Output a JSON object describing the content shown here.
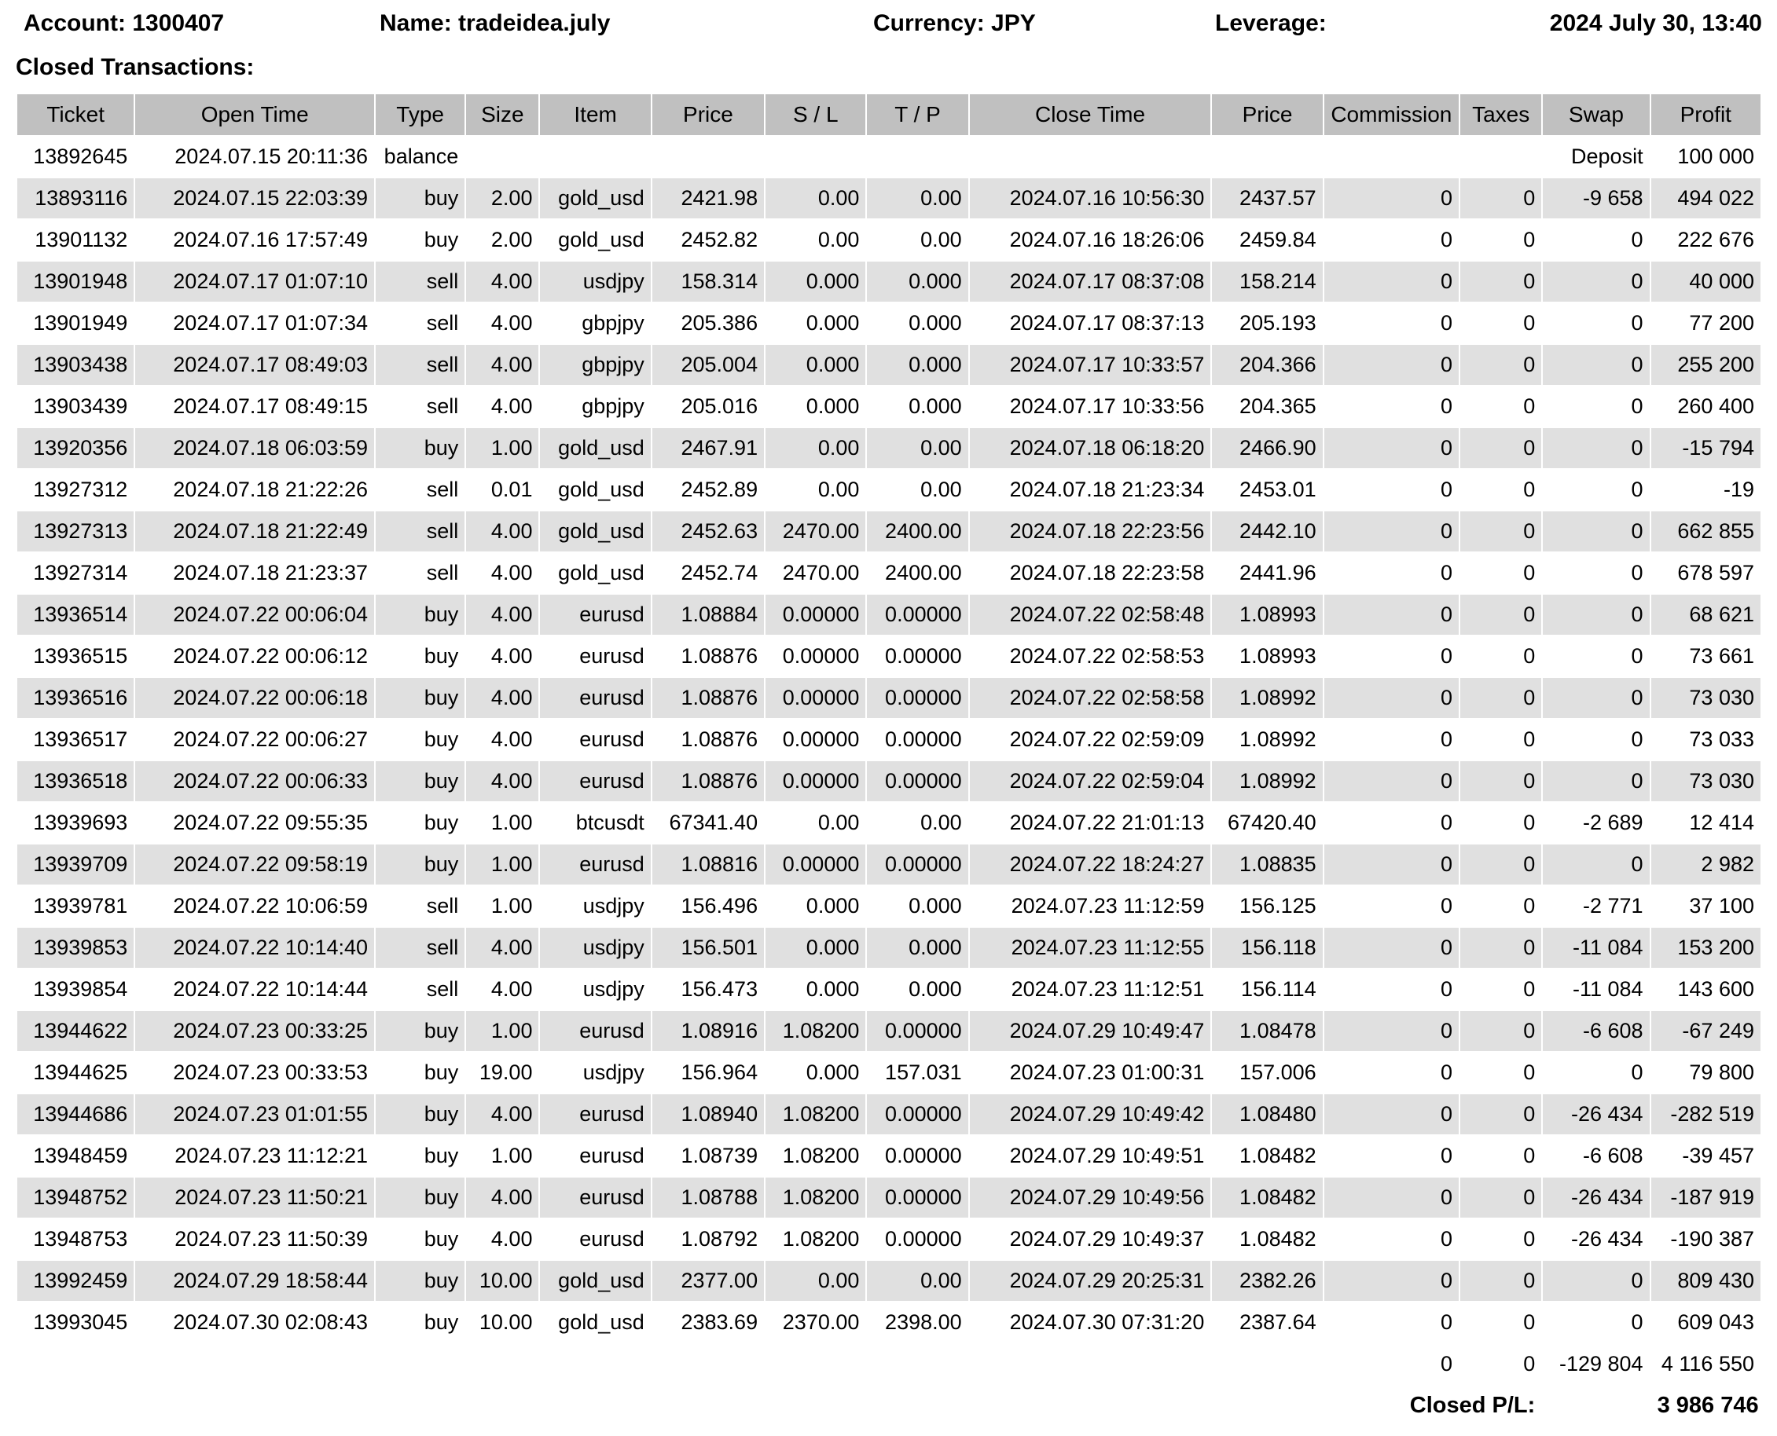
{
  "report_header": {
    "account": "Account: 1300407",
    "name": "Name: tradeidea.july",
    "currency": "Currency: JPY",
    "leverage": "Leverage:",
    "datetime": "2024 July 30, 13:40"
  },
  "section_title": "Closed Transactions:",
  "colors": {
    "header_row_bg": "#c0c0c0",
    "alt_row_bg": "#e0e0e0",
    "text": "#000000",
    "background": "#ffffff"
  },
  "table": {
    "columns": [
      "Ticket",
      "Open Time",
      "Type",
      "Size",
      "Item",
      "Price",
      "S / L",
      "T / P",
      "Close Time",
      "Price",
      "Commission",
      "Taxes",
      "Swap",
      "Profit"
    ],
    "rows": [
      {
        "type": "balance",
        "ticket": "13892645",
        "open_time": "2024.07.15 20:11:36",
        "trade_type": "balance",
        "description": "Deposit",
        "profit": "100 000"
      },
      {
        "type": "trade",
        "cells": [
          "13893116",
          "2024.07.15 22:03:39",
          "buy",
          "2.00",
          "gold_usd",
          "2421.98",
          "0.00",
          "0.00",
          "2024.07.16 10:56:30",
          "2437.57",
          "0",
          "0",
          "-9 658",
          "494 022"
        ]
      },
      {
        "type": "trade",
        "cells": [
          "13901132",
          "2024.07.16 17:57:49",
          "buy",
          "2.00",
          "gold_usd",
          "2452.82",
          "0.00",
          "0.00",
          "2024.07.16 18:26:06",
          "2459.84",
          "0",
          "0",
          "0",
          "222 676"
        ]
      },
      {
        "type": "trade",
        "cells": [
          "13901948",
          "2024.07.17 01:07:10",
          "sell",
          "4.00",
          "usdjpy",
          "158.314",
          "0.000",
          "0.000",
          "2024.07.17 08:37:08",
          "158.214",
          "0",
          "0",
          "0",
          "40 000"
        ]
      },
      {
        "type": "trade",
        "cells": [
          "13901949",
          "2024.07.17 01:07:34",
          "sell",
          "4.00",
          "gbpjpy",
          "205.386",
          "0.000",
          "0.000",
          "2024.07.17 08:37:13",
          "205.193",
          "0",
          "0",
          "0",
          "77 200"
        ]
      },
      {
        "type": "trade",
        "cells": [
          "13903438",
          "2024.07.17 08:49:03",
          "sell",
          "4.00",
          "gbpjpy",
          "205.004",
          "0.000",
          "0.000",
          "2024.07.17 10:33:57",
          "204.366",
          "0",
          "0",
          "0",
          "255 200"
        ]
      },
      {
        "type": "trade",
        "cells": [
          "13903439",
          "2024.07.17 08:49:15",
          "sell",
          "4.00",
          "gbpjpy",
          "205.016",
          "0.000",
          "0.000",
          "2024.07.17 10:33:56",
          "204.365",
          "0",
          "0",
          "0",
          "260 400"
        ]
      },
      {
        "type": "trade",
        "cells": [
          "13920356",
          "2024.07.18 06:03:59",
          "buy",
          "1.00",
          "gold_usd",
          "2467.91",
          "0.00",
          "0.00",
          "2024.07.18 06:18:20",
          "2466.90",
          "0",
          "0",
          "0",
          "-15 794"
        ]
      },
      {
        "type": "trade",
        "cells": [
          "13927312",
          "2024.07.18 21:22:26",
          "sell",
          "0.01",
          "gold_usd",
          "2452.89",
          "0.00",
          "0.00",
          "2024.07.18 21:23:34",
          "2453.01",
          "0",
          "0",
          "0",
          "-19"
        ]
      },
      {
        "type": "trade",
        "cells": [
          "13927313",
          "2024.07.18 21:22:49",
          "sell",
          "4.00",
          "gold_usd",
          "2452.63",
          "2470.00",
          "2400.00",
          "2024.07.18 22:23:56",
          "2442.10",
          "0",
          "0",
          "0",
          "662 855"
        ]
      },
      {
        "type": "trade",
        "cells": [
          "13927314",
          "2024.07.18 21:23:37",
          "sell",
          "4.00",
          "gold_usd",
          "2452.74",
          "2470.00",
          "2400.00",
          "2024.07.18 22:23:58",
          "2441.96",
          "0",
          "0",
          "0",
          "678 597"
        ]
      },
      {
        "type": "trade",
        "cells": [
          "13936514",
          "2024.07.22 00:06:04",
          "buy",
          "4.00",
          "eurusd",
          "1.08884",
          "0.00000",
          "0.00000",
          "2024.07.22 02:58:48",
          "1.08993",
          "0",
          "0",
          "0",
          "68 621"
        ]
      },
      {
        "type": "trade",
        "cells": [
          "13936515",
          "2024.07.22 00:06:12",
          "buy",
          "4.00",
          "eurusd",
          "1.08876",
          "0.00000",
          "0.00000",
          "2024.07.22 02:58:53",
          "1.08993",
          "0",
          "0",
          "0",
          "73 661"
        ]
      },
      {
        "type": "trade",
        "cells": [
          "13936516",
          "2024.07.22 00:06:18",
          "buy",
          "4.00",
          "eurusd",
          "1.08876",
          "0.00000",
          "0.00000",
          "2024.07.22 02:58:58",
          "1.08992",
          "0",
          "0",
          "0",
          "73 030"
        ]
      },
      {
        "type": "trade",
        "cells": [
          "13936517",
          "2024.07.22 00:06:27",
          "buy",
          "4.00",
          "eurusd",
          "1.08876",
          "0.00000",
          "0.00000",
          "2024.07.22 02:59:09",
          "1.08992",
          "0",
          "0",
          "0",
          "73 033"
        ]
      },
      {
        "type": "trade",
        "cells": [
          "13936518",
          "2024.07.22 00:06:33",
          "buy",
          "4.00",
          "eurusd",
          "1.08876",
          "0.00000",
          "0.00000",
          "2024.07.22 02:59:04",
          "1.08992",
          "0",
          "0",
          "0",
          "73 030"
        ]
      },
      {
        "type": "trade",
        "cells": [
          "13939693",
          "2024.07.22 09:55:35",
          "buy",
          "1.00",
          "btcusdt",
          "67341.40",
          "0.00",
          "0.00",
          "2024.07.22 21:01:13",
          "67420.40",
          "0",
          "0",
          "-2 689",
          "12 414"
        ]
      },
      {
        "type": "trade",
        "cells": [
          "13939709",
          "2024.07.22 09:58:19",
          "buy",
          "1.00",
          "eurusd",
          "1.08816",
          "0.00000",
          "0.00000",
          "2024.07.22 18:24:27",
          "1.08835",
          "0",
          "0",
          "0",
          "2 982"
        ]
      },
      {
        "type": "trade",
        "cells": [
          "13939781",
          "2024.07.22 10:06:59",
          "sell",
          "1.00",
          "usdjpy",
          "156.496",
          "0.000",
          "0.000",
          "2024.07.23 11:12:59",
          "156.125",
          "0",
          "0",
          "-2 771",
          "37 100"
        ]
      },
      {
        "type": "trade",
        "cells": [
          "13939853",
          "2024.07.22 10:14:40",
          "sell",
          "4.00",
          "usdjpy",
          "156.501",
          "0.000",
          "0.000",
          "2024.07.23 11:12:55",
          "156.118",
          "0",
          "0",
          "-11 084",
          "153 200"
        ]
      },
      {
        "type": "trade",
        "cells": [
          "13939854",
          "2024.07.22 10:14:44",
          "sell",
          "4.00",
          "usdjpy",
          "156.473",
          "0.000",
          "0.000",
          "2024.07.23 11:12:51",
          "156.114",
          "0",
          "0",
          "-11 084",
          "143 600"
        ]
      },
      {
        "type": "trade",
        "cells": [
          "13944622",
          "2024.07.23 00:33:25",
          "buy",
          "1.00",
          "eurusd",
          "1.08916",
          "1.08200",
          "0.00000",
          "2024.07.29 10:49:47",
          "1.08478",
          "0",
          "0",
          "-6 608",
          "-67 249"
        ]
      },
      {
        "type": "trade",
        "cells": [
          "13944625",
          "2024.07.23 00:33:53",
          "buy",
          "19.00",
          "usdjpy",
          "156.964",
          "0.000",
          "157.031",
          "2024.07.23 01:00:31",
          "157.006",
          "0",
          "0",
          "0",
          "79 800"
        ]
      },
      {
        "type": "trade",
        "cells": [
          "13944686",
          "2024.07.23 01:01:55",
          "buy",
          "4.00",
          "eurusd",
          "1.08940",
          "1.08200",
          "0.00000",
          "2024.07.29 10:49:42",
          "1.08480",
          "0",
          "0",
          "-26 434",
          "-282 519"
        ]
      },
      {
        "type": "trade",
        "cells": [
          "13948459",
          "2024.07.23 11:12:21",
          "buy",
          "1.00",
          "eurusd",
          "1.08739",
          "1.08200",
          "0.00000",
          "2024.07.29 10:49:51",
          "1.08482",
          "0",
          "0",
          "-6 608",
          "-39 457"
        ]
      },
      {
        "type": "trade",
        "cells": [
          "13948752",
          "2024.07.23 11:50:21",
          "buy",
          "4.00",
          "eurusd",
          "1.08788",
          "1.08200",
          "0.00000",
          "2024.07.29 10:49:56",
          "1.08482",
          "0",
          "0",
          "-26 434",
          "-187 919"
        ]
      },
      {
        "type": "trade",
        "cells": [
          "13948753",
          "2024.07.23 11:50:39",
          "buy",
          "4.00",
          "eurusd",
          "1.08792",
          "1.08200",
          "0.00000",
          "2024.07.29 10:49:37",
          "1.08482",
          "0",
          "0",
          "-26 434",
          "-190 387"
        ]
      },
      {
        "type": "trade",
        "cells": [
          "13992459",
          "2024.07.29 18:58:44",
          "buy",
          "10.00",
          "gold_usd",
          "2377.00",
          "0.00",
          "0.00",
          "2024.07.29 20:25:31",
          "2382.26",
          "0",
          "0",
          "0",
          "809 430"
        ]
      },
      {
        "type": "trade",
        "cells": [
          "13993045",
          "2024.07.30 02:08:43",
          "buy",
          "10.00",
          "gold_usd",
          "2383.69",
          "2370.00",
          "2398.00",
          "2024.07.30 07:31:20",
          "2387.64",
          "0",
          "0",
          "0",
          "609 043"
        ]
      }
    ],
    "totals": {
      "commission": "0",
      "taxes": "0",
      "swap": "-129 804",
      "profit": "4 116 550"
    },
    "closed_pl": {
      "label": "Closed P/L:",
      "value": "3 986 746"
    }
  }
}
